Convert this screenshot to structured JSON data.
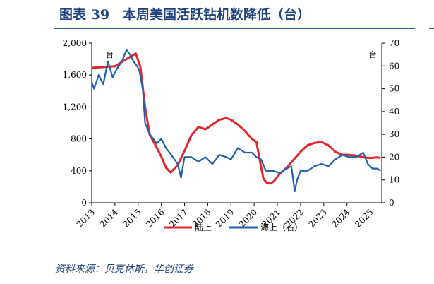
{
  "figure": {
    "title": "图表 39　本周美国活跃钻机数降低（台）",
    "source": "资料来源：贝克休斯，华创证券"
  },
  "chart_data": {
    "type": "line",
    "x_range": [
      2013,
      2025.5
    ],
    "x_ticks": [
      "2013",
      "2014",
      "2015",
      "2016",
      "2017",
      "2018",
      "2019",
      "2020",
      "2021",
      "2022",
      "2023",
      "2024",
      "2025"
    ],
    "y_left": {
      "unit": "台",
      "min": 0,
      "max": 2000,
      "ticks": [
        "0",
        "400",
        "800",
        "1,200",
        "1,600",
        "2,000"
      ]
    },
    "y_right": {
      "unit": "台",
      "min": 0,
      "max": 70,
      "ticks": [
        "0",
        "10",
        "20",
        "30",
        "40",
        "50",
        "60",
        "70"
      ]
    },
    "grid": false,
    "legend_position": "bottom",
    "series": [
      {
        "name": "陆上",
        "axis": "left",
        "color": "#e0262d",
        "x": [
          2013.0,
          2013.5,
          2014.0,
          2014.5,
          2014.9,
          2015.1,
          2015.3,
          2015.5,
          2015.75,
          2016.0,
          2016.2,
          2016.4,
          2016.7,
          2017.0,
          2017.3,
          2017.6,
          2017.9,
          2018.2,
          2018.5,
          2018.8,
          2019.0,
          2019.3,
          2019.6,
          2019.9,
          2020.1,
          2020.25,
          2020.4,
          2020.55,
          2020.7,
          2020.85,
          2021.1,
          2021.4,
          2021.7,
          2022.0,
          2022.3,
          2022.6,
          2022.9,
          2023.2,
          2023.5,
          2023.8,
          2024.1,
          2024.4,
          2024.7,
          2025.0,
          2025.3,
          2025.45
        ],
        "y": [
          1690,
          1700,
          1710,
          1800,
          1870,
          1700,
          1200,
          850,
          720,
          580,
          440,
          380,
          470,
          650,
          850,
          950,
          920,
          980,
          1040,
          1060,
          1040,
          980,
          900,
          800,
          760,
          520,
          300,
          250,
          240,
          270,
          360,
          440,
          540,
          640,
          720,
          750,
          760,
          720,
          640,
          600,
          600,
          590,
          570,
          560,
          570,
          560
        ]
      },
      {
        "name": "海上（右）",
        "axis": "right",
        "color": "#1f5fb0",
        "x": [
          2013.0,
          2013.1,
          2013.3,
          2013.5,
          2013.7,
          2013.9,
          2014.1,
          2014.3,
          2014.5,
          2014.65,
          2014.8,
          2014.95,
          2015.05,
          2015.2,
          2015.3,
          2015.5,
          2015.8,
          2016.0,
          2016.2,
          2016.5,
          2016.7,
          2016.85,
          2017.0,
          2017.3,
          2017.6,
          2017.9,
          2018.2,
          2018.5,
          2018.8,
          2019.0,
          2019.3,
          2019.6,
          2019.9,
          2020.1,
          2020.3,
          2020.5,
          2020.8,
          2021.1,
          2021.4,
          2021.6,
          2021.75,
          2021.85,
          2022.0,
          2022.3,
          2022.6,
          2022.9,
          2023.2,
          2023.5,
          2023.8,
          2024.1,
          2024.4,
          2024.7,
          2024.9,
          2025.1,
          2025.3,
          2025.45
        ],
        "y": [
          53,
          50,
          56,
          52,
          62,
          55,
          59,
          62,
          67,
          65,
          62,
          60,
          58,
          50,
          35,
          30,
          26,
          28,
          24,
          20,
          17,
          11,
          20,
          20,
          18,
          20,
          17,
          21,
          20,
          19,
          24,
          22,
          22,
          20,
          19,
          14,
          14,
          13,
          15,
          16,
          5,
          10,
          14,
          14,
          16,
          17,
          16,
          19,
          21,
          20,
          20,
          22,
          17,
          15,
          15,
          14
        ]
      }
    ]
  }
}
